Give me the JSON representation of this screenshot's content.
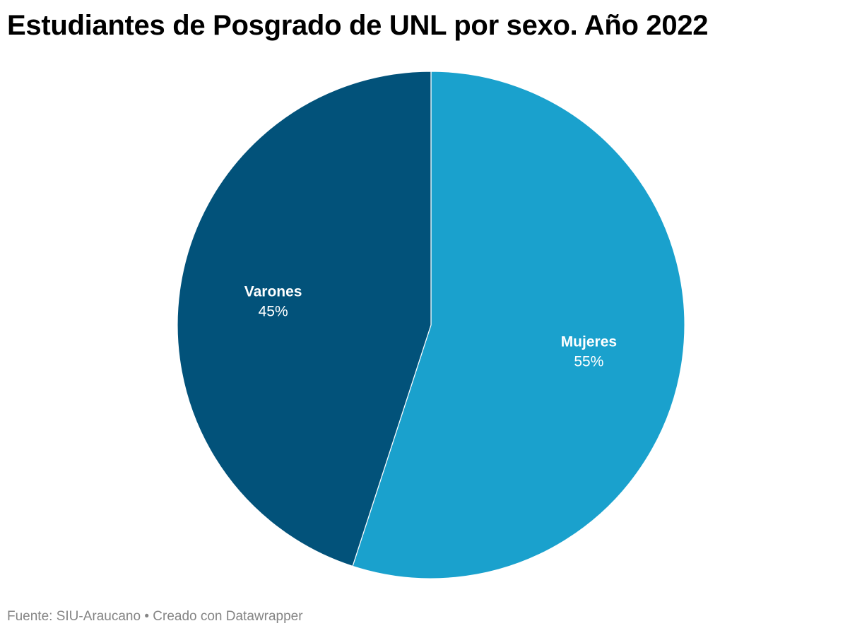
{
  "chart_data": {
    "type": "pie",
    "title": "Estudiantes de Posgrado de UNL por sexo. Año 2022",
    "slices": [
      {
        "label": "Mujeres",
        "value": 55,
        "display": "55%",
        "color": "#1aa1cd"
      },
      {
        "label": "Varones",
        "value": 45,
        "display": "45%",
        "color": "#02527a"
      }
    ],
    "start": "12 o'clock",
    "direction": "clockwise"
  },
  "footer": {
    "source": "Fuente: SIU-Araucano",
    "separator": "•",
    "credit": "Creado con Datawrapper"
  }
}
